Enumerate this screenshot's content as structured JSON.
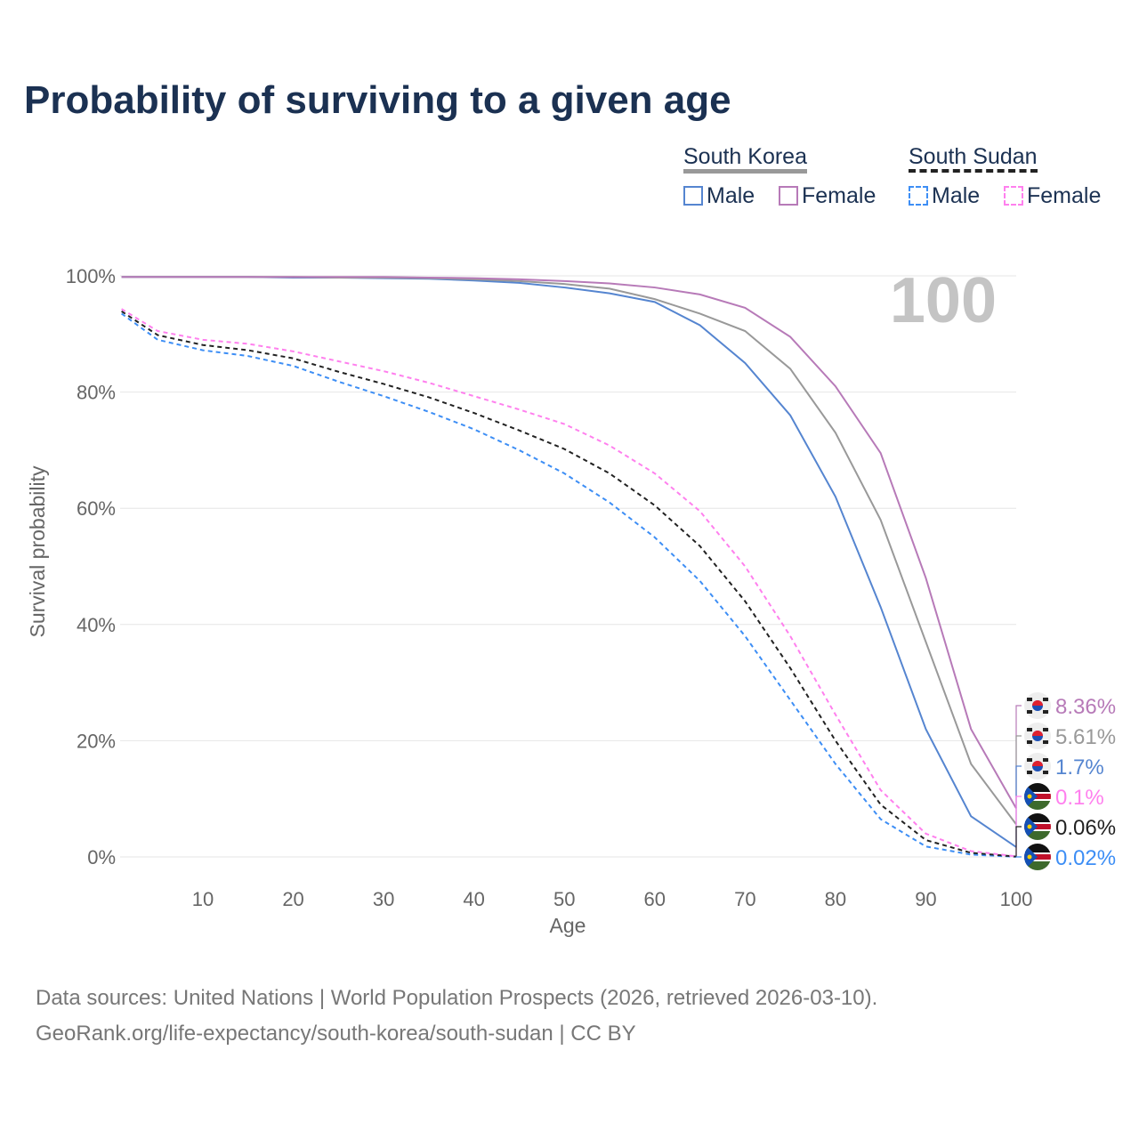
{
  "title": "Probability of surviving to a given age",
  "legend": {
    "groups": [
      {
        "name": "South Korea",
        "items": [
          "Male",
          "Female"
        ]
      },
      {
        "name": "South Sudan",
        "items": [
          "Male",
          "Female"
        ]
      }
    ]
  },
  "big_label": "100",
  "source_line1": "Data sources: United Nations | World Population Prospects (2026, retrieved 2026-03-10).",
  "source_line2": "GeoRank.org/life-expectancy/south-korea/south-sudan | CC BY",
  "chart_data": {
    "type": "line",
    "title": "Probability of surviving to a given age",
    "xlabel": "Age",
    "ylabel": "Survival probability",
    "xlim": [
      1,
      100
    ],
    "ylim": [
      0,
      100
    ],
    "xticks": [
      10,
      20,
      30,
      40,
      50,
      60,
      70,
      80,
      90,
      100
    ],
    "yticks": [
      0,
      20,
      40,
      60,
      80,
      100
    ],
    "x": [
      1,
      5,
      10,
      15,
      20,
      25,
      30,
      35,
      40,
      45,
      50,
      55,
      60,
      65,
      70,
      75,
      80,
      85,
      90,
      95,
      100
    ],
    "series": [
      {
        "name": "South Sudan Male",
        "country": "South Sudan",
        "color": "#3d8ef5",
        "dashed": true,
        "end_label": "0.02%",
        "values": [
          93.5,
          89,
          87.2,
          86.2,
          84.5,
          81.8,
          79.3,
          76.6,
          73.6,
          70,
          66,
          61,
          55,
          47.5,
          38,
          27,
          16,
          6.5,
          1.8,
          0.4,
          0.02
        ]
      },
      {
        "name": "South Sudan Total",
        "country": "South Sudan",
        "color": "#222222",
        "dashed": true,
        "end_label": "0.06%",
        "values": [
          93.9,
          89.8,
          88.1,
          87.2,
          85.8,
          83.5,
          81.4,
          79.1,
          76.4,
          73.4,
          70.2,
          66,
          60.5,
          53.5,
          44,
          32.5,
          20,
          9,
          2.9,
          0.7,
          0.06
        ]
      },
      {
        "name": "South Sudan Female",
        "country": "South Sudan",
        "color": "#ff80ee",
        "dashed": true,
        "end_label": "0.1%",
        "values": [
          94.3,
          90.5,
          89,
          88.3,
          87,
          85.3,
          83.6,
          81.6,
          79.3,
          77,
          74.5,
          70.8,
          66,
          59.5,
          50,
          38,
          24.5,
          11.5,
          4,
          1,
          0.1
        ]
      },
      {
        "name": "South Korea Male",
        "country": "South Korea",
        "color": "#5585d0",
        "dashed": false,
        "end_label": "1.7%",
        "values": [
          99.8,
          99.8,
          99.8,
          99.8,
          99.7,
          99.7,
          99.6,
          99.5,
          99.2,
          98.8,
          98,
          97,
          95.5,
          91.5,
          85,
          76,
          62,
          43,
          22,
          7,
          1.7
        ]
      },
      {
        "name": "South Korea Total",
        "country": "South Korea",
        "color": "#999999",
        "dashed": false,
        "end_label": "5.61%",
        "values": [
          99.8,
          99.8,
          99.8,
          99.8,
          99.8,
          99.7,
          99.7,
          99.6,
          99.4,
          99.1,
          98.6,
          97.8,
          96,
          93.5,
          90.5,
          84,
          73,
          58,
          37,
          16,
          5.61
        ]
      },
      {
        "name": "South Korea Female",
        "country": "South Korea",
        "color": "#b77ab8",
        "dashed": false,
        "end_label": "8.36%",
        "values": [
          99.8,
          99.8,
          99.8,
          99.8,
          99.8,
          99.8,
          99.8,
          99.7,
          99.6,
          99.4,
          99.1,
          98.7,
          98,
          96.8,
          94.5,
          89.5,
          81,
          69.5,
          48,
          22,
          8.36
        ]
      }
    ]
  }
}
